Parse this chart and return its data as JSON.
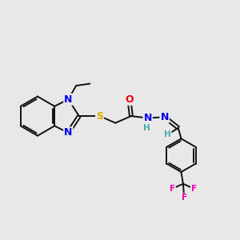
{
  "background_color": "#e8e8e8",
  "atom_colors": {
    "N": "#0000ee",
    "S": "#ddaa00",
    "O": "#ee0000",
    "F": "#ee00aa",
    "H_imine": "#44aaaa",
    "C": "#111111"
  },
  "figsize": [
    3.0,
    3.0
  ],
  "dpi": 100
}
